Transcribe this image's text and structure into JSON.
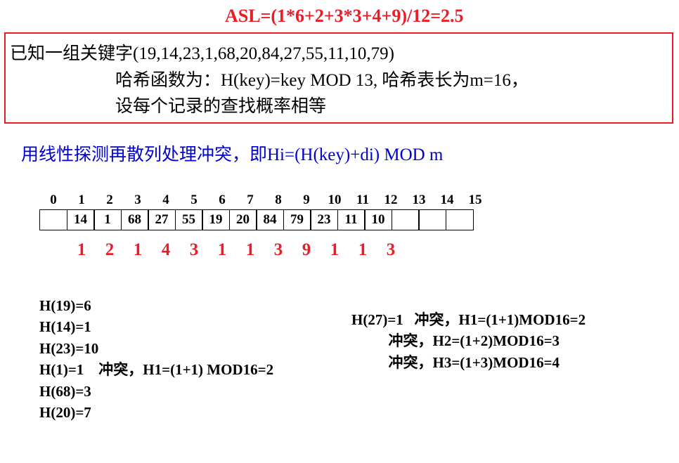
{
  "asl_formula": "ASL=(1*6+2+3*3+4+9)/12=2.5",
  "problem": {
    "line1": "已知一组关键字(19,14,23,1,68,20,84,27,55,11,10,79)",
    "line2": "哈希函数为：H(key)=key MOD 13, 哈希表长为m=16，",
    "line3": "设每个记录的查找概率相等"
  },
  "method": "用线性探测再散列处理冲突，即Hi=(H(key)+di) MOD m",
  "table": {
    "indices": [
      "0",
      "1",
      "2",
      "3",
      "4",
      "5",
      "6",
      "7",
      "8",
      "9",
      "10",
      "11",
      "12",
      "13",
      "14",
      "15"
    ],
    "values": [
      "",
      "14",
      "1",
      "68",
      "27",
      "55",
      "19",
      "20",
      "84",
      "79",
      "23",
      "11",
      "10",
      "",
      "",
      ""
    ],
    "counts": [
      "1",
      "2",
      "1",
      "4",
      "3",
      "1",
      "1",
      "3",
      "9",
      "1",
      "1",
      "3"
    ]
  },
  "hash_left": {
    "l1": "H(19)=6",
    "l2": "H(14)=1",
    "l3": "H(23)=10",
    "l4": "H(1)=1    冲突，H1=(1+1) MOD16=2",
    "l5": "H(68)=3",
    "l6": "H(20)=7"
  },
  "hash_right": {
    "l1": "H(27)=1   冲突，H1=(1+1)MOD16=2",
    "l2": "          冲突，H2=(1+2)MOD16=3",
    "l3": "          冲突，H3=(1+3)MOD16=4"
  },
  "colors": {
    "red": "#ed1c24",
    "blue": "#0000d0",
    "black": "#000000",
    "bg": "#ffffff"
  }
}
